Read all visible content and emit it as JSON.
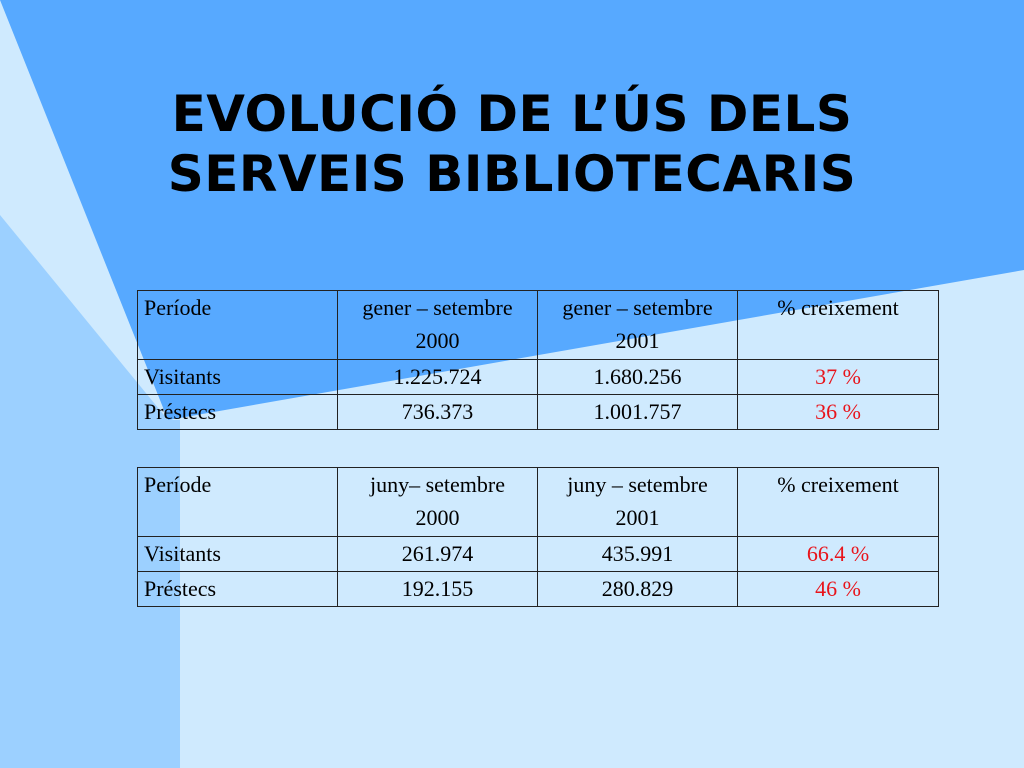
{
  "slide": {
    "title_line1": "EVOLUCIÓ DE L’ÚS DELS",
    "title_line2": "SERVEIS BIBLIOTECARIS"
  },
  "colors": {
    "background_dark": "#57a9ff",
    "background_mid": "#9cd0ff",
    "background_light": "#cfeafe",
    "growth_text": "#e8141b"
  },
  "tables": [
    {
      "header": {
        "period_label": "Període",
        "col1_line1": "gener – setembre",
        "col1_line2": "2000",
        "col2_line1": "gener – setembre",
        "col2_line2": "2001",
        "growth_label": "% creixement"
      },
      "rows": [
        {
          "label": "Visitants",
          "v2000": "1.225.724",
          "v2001": "1.680.256",
          "growth": "37 %"
        },
        {
          "label": "Préstecs",
          "v2000": "736.373",
          "v2001": "1.001.757",
          "growth": "36 %"
        }
      ]
    },
    {
      "header": {
        "period_label": "Període",
        "col1_line1": "juny– setembre",
        "col1_line2": "2000",
        "col2_line1": "juny – setembre",
        "col2_line2": "2001",
        "growth_label": "% creixement"
      },
      "rows": [
        {
          "label": "Visitants",
          "v2000": "261.974",
          "v2001": "435.991",
          "growth": "66.4 %"
        },
        {
          "label": "Préstecs",
          "v2000": "192.155",
          "v2001": "280.829",
          "growth": "46 %"
        }
      ]
    }
  ]
}
